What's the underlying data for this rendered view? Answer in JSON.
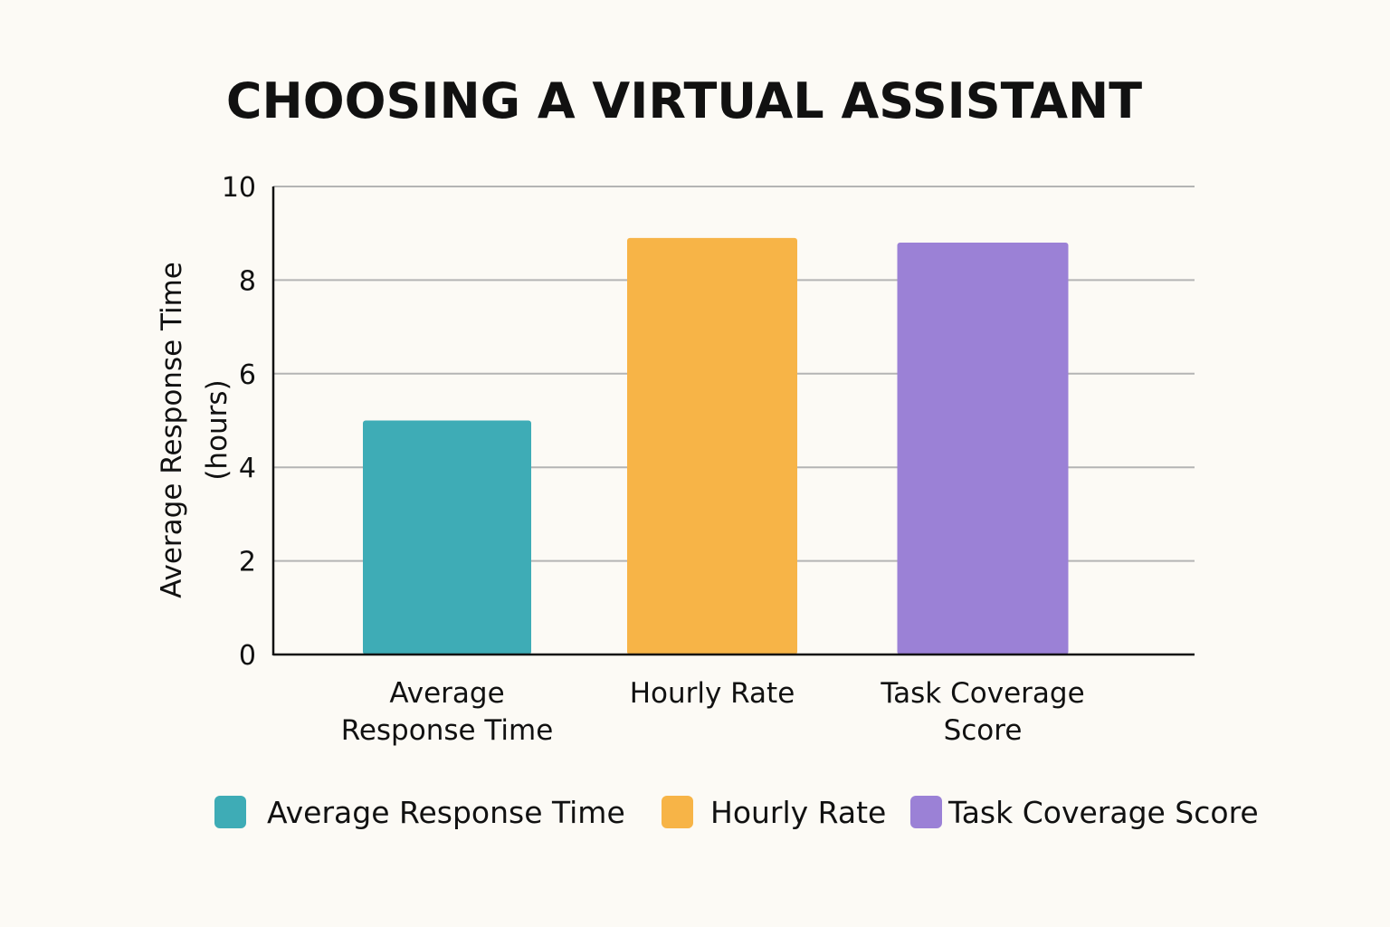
{
  "chart_data": {
    "type": "bar",
    "title": "CHOOSING A VIRTUAL ASSISTANT",
    "xlabel": "",
    "ylabel": [
      "Average Response Time",
      "(hours)"
    ],
    "categories": [
      [
        "Average",
        "Response Time"
      ],
      [
        "Hourly Rate"
      ],
      [
        "Task Coverage",
        "Score"
      ]
    ],
    "values": [
      5.0,
      8.9,
      8.8
    ],
    "colors": [
      "#3eacb6",
      "#f7b447",
      "#9b81d6"
    ],
    "ylim": [
      0,
      10
    ],
    "yticks": [
      0,
      2,
      4,
      6,
      8,
      10
    ],
    "grid": true,
    "legend_position": "bottom",
    "legend": [
      {
        "label": "Average Response Time",
        "color": "#3eacb6"
      },
      {
        "label": "Hourly Rate",
        "color": "#f7b447"
      },
      {
        "label": "Task Coverage Score",
        "color": "#9b81d6"
      }
    ]
  }
}
